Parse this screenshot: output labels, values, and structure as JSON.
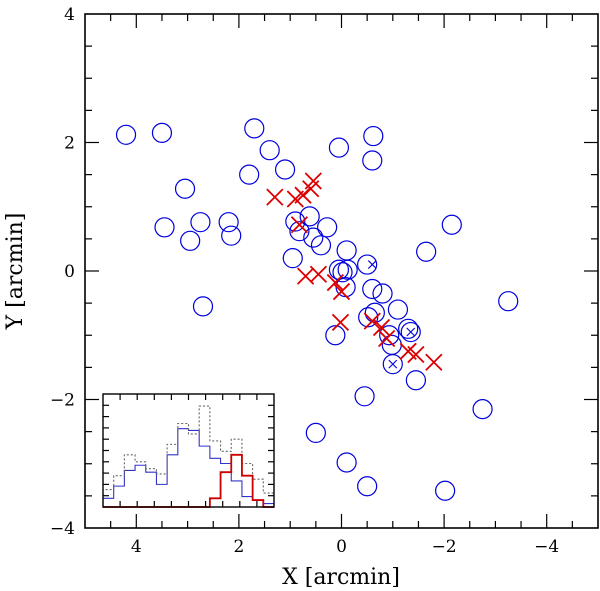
{
  "chart_data": {
    "type": "scatter",
    "title": "",
    "xlabel": "X [arcmin]",
    "ylabel": "Y [arcmin]",
    "xlim": [
      5,
      -5
    ],
    "ylim": [
      -4,
      4
    ],
    "xticks": [
      4,
      2,
      0,
      -2,
      -4
    ],
    "yticks": [
      4,
      2,
      0,
      -2,
      -4
    ],
    "xtick_labels": [
      "4",
      "2",
      "0",
      "−2",
      "−4"
    ],
    "ytick_labels": [
      "4",
      "2",
      "0",
      "−2",
      "−4"
    ],
    "grid": false,
    "series": [
      {
        "name": "circles",
        "marker": "circle",
        "color": "#0000dd",
        "points": [
          [
            4.2,
            2.12
          ],
          [
            3.5,
            2.15
          ],
          [
            1.7,
            2.22
          ],
          [
            1.4,
            1.88
          ],
          [
            1.1,
            1.58
          ],
          [
            1.8,
            1.5
          ],
          [
            3.05,
            1.28
          ],
          [
            0.05,
            1.92
          ],
          [
            -0.62,
            2.1
          ],
          [
            -0.6,
            1.72
          ],
          [
            3.45,
            0.68
          ],
          [
            2.95,
            0.47
          ],
          [
            2.75,
            0.76
          ],
          [
            2.2,
            0.76
          ],
          [
            2.15,
            0.55
          ],
          [
            0.9,
            0.77
          ],
          [
            0.62,
            0.85
          ],
          [
            0.82,
            0.62
          ],
          [
            0.55,
            0.52
          ],
          [
            0.4,
            0.4
          ],
          [
            0.28,
            0.68
          ],
          [
            0.95,
            0.2
          ],
          [
            -0.1,
            0.32
          ],
          [
            0.05,
            0.02
          ],
          [
            -0.12,
            0.02
          ],
          [
            -0.02,
            -0.02
          ],
          [
            -0.5,
            0.1
          ],
          [
            -0.6,
            -0.28
          ],
          [
            -0.8,
            -0.35
          ],
          [
            -0.08,
            -0.25
          ],
          [
            -1.1,
            -0.6
          ],
          [
            -1.65,
            0.3
          ],
          [
            -2.15,
            0.72
          ],
          [
            -3.25,
            -0.47
          ],
          [
            -0.65,
            -0.65
          ],
          [
            -0.52,
            -0.72
          ],
          [
            -1.3,
            -0.9
          ],
          [
            -1.35,
            -0.95
          ],
          [
            -1.0,
            -1.45
          ],
          [
            -1.45,
            -1.7
          ],
          [
            0.12,
            -1.0
          ],
          [
            -0.45,
            -1.95
          ],
          [
            2.7,
            -0.55
          ],
          [
            0.5,
            -2.52
          ],
          [
            -0.1,
            -2.98
          ],
          [
            -0.5,
            -3.35
          ],
          [
            -2.02,
            -3.42
          ],
          [
            -2.75,
            -2.15
          ],
          [
            -0.93,
            -1.0
          ],
          [
            -0.98,
            -1.15
          ]
        ]
      },
      {
        "name": "small crosses",
        "marker": "x-small",
        "color": "#0000dd",
        "points": [
          [
            -0.6,
            0.1
          ],
          [
            -1.35,
            -0.95
          ],
          [
            -1.0,
            -1.45
          ]
        ]
      },
      {
        "name": "crosses",
        "marker": "x",
        "color": "#dd0000",
        "points": [
          [
            1.3,
            1.15
          ],
          [
            0.9,
            1.12
          ],
          [
            0.75,
            1.18
          ],
          [
            0.6,
            1.28
          ],
          [
            0.55,
            1.4
          ],
          [
            0.82,
            0.72
          ],
          [
            0.7,
            -0.08
          ],
          [
            0.45,
            -0.05
          ],
          [
            0.12,
            -0.18
          ],
          [
            0.0,
            -0.32
          ],
          [
            0.02,
            -0.8
          ],
          [
            -0.6,
            -0.78
          ],
          [
            -0.78,
            -0.88
          ],
          [
            -0.88,
            -1.05
          ],
          [
            -1.3,
            -1.25
          ],
          [
            -1.45,
            -1.3
          ],
          [
            -1.8,
            -1.42
          ]
        ]
      }
    ],
    "inset": {
      "type": "histogram",
      "series": [
        {
          "name": "blue",
          "color": "#3333cc",
          "style": "solid",
          "values": [
            0.5,
            1.2,
            2.1,
            2.4,
            2.0,
            1.3,
            3.0,
            4.5,
            4.4,
            3.5,
            2.8,
            2.5,
            1.5,
            0.6,
            0.4,
            0.2
          ]
        },
        {
          "name": "dotted",
          "color": "#666666",
          "style": "dotted",
          "values": [
            1.0,
            1.8,
            3.0,
            2.6,
            2.2,
            1.9,
            3.6,
            4.8,
            4.2,
            5.8,
            3.8,
            3.2,
            3.9,
            2.5,
            1.6,
            0.8
          ]
        },
        {
          "name": "red",
          "color": "#cc0000",
          "style": "solid",
          "values": [
            0,
            0,
            0,
            0,
            0,
            0,
            0,
            0,
            0,
            0,
            0.5,
            2.0,
            3.0,
            1.8,
            0.4,
            0
          ]
        }
      ]
    }
  }
}
